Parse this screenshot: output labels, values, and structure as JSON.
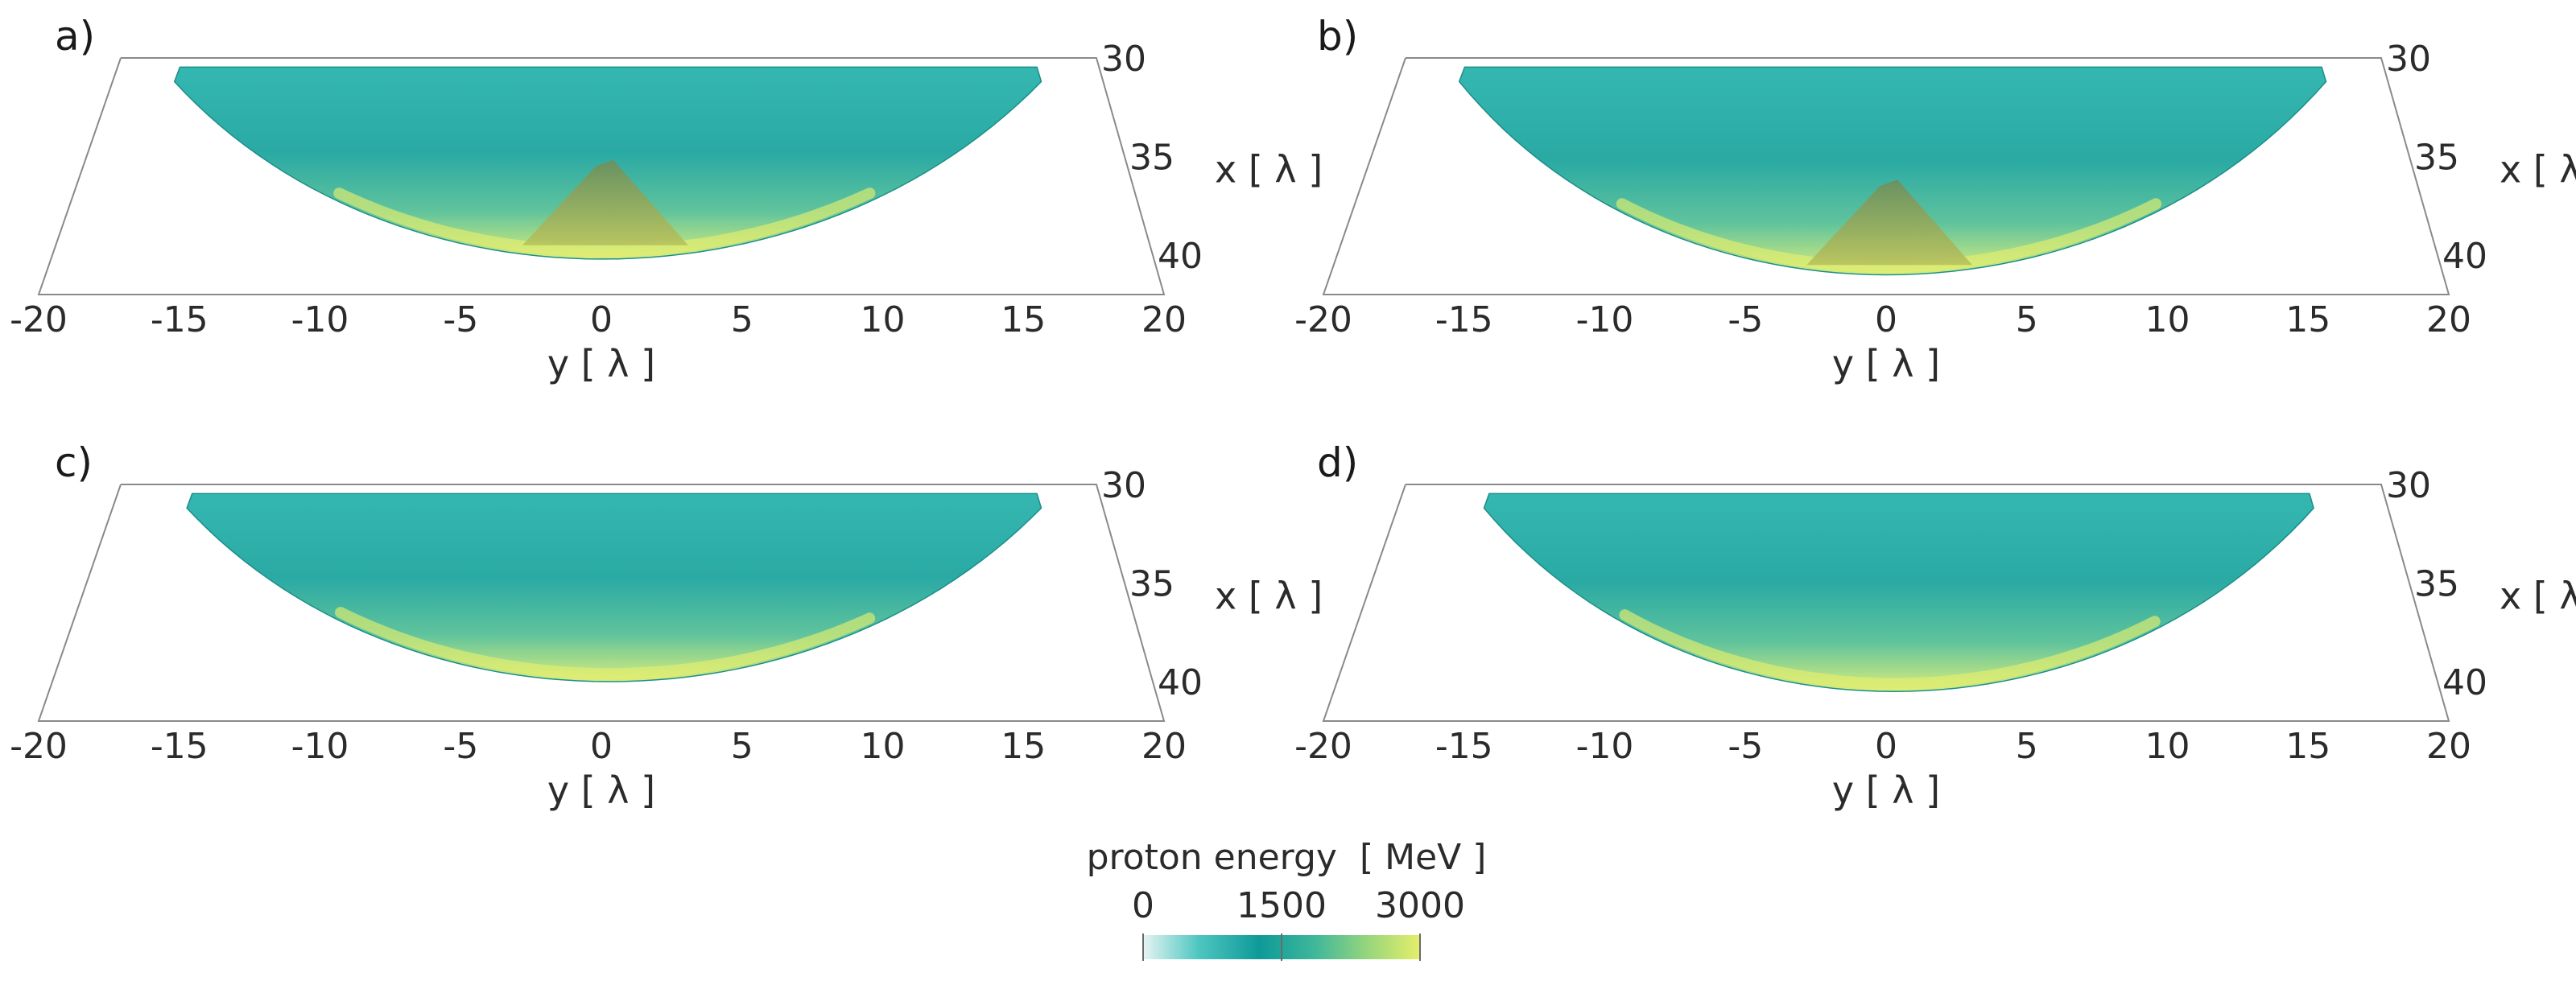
{
  "chart_data": [
    {
      "type": "surface3d",
      "panel": "a)",
      "xlabel": "y [ λ ]",
      "ylabel": "x [ λ ]",
      "x_ticks": [
        "-20",
        "-15",
        "-10",
        "-5",
        "0",
        "5",
        "10",
        "15",
        "20"
      ],
      "y_ticks": [
        "30",
        "35",
        "40"
      ],
      "xlim": [
        -20,
        20
      ],
      "ylim": [
        30,
        42
      ],
      "y_extent": [
        -17.5,
        17.5
      ],
      "depth_center": 40.2,
      "peak": {
        "y": 0,
        "x_range": [
          35.5,
          39.5
        ]
      }
    },
    {
      "type": "surface3d",
      "panel": "b)",
      "xlabel": "y [ λ ]",
      "ylabel": "x [ λ ]",
      "x_ticks": [
        "-20",
        "-15",
        "-10",
        "-5",
        "0",
        "5",
        "10",
        "15",
        "20"
      ],
      "y_ticks": [
        "30",
        "35",
        "40"
      ],
      "xlim": [
        -20,
        20
      ],
      "ylim": [
        30,
        42
      ],
      "y_extent": [
        -17.5,
        17.5
      ],
      "depth_center": 41.0,
      "peak": {
        "y": 0,
        "x_range": [
          36.5,
          40.5
        ]
      }
    },
    {
      "type": "surface3d",
      "panel": "c)",
      "xlabel": "y [ λ ]",
      "ylabel": "x [ λ ]",
      "x_ticks": [
        "-20",
        "-15",
        "-10",
        "-5",
        "0",
        "5",
        "10",
        "15",
        "20"
      ],
      "y_ticks": [
        "30",
        "35",
        "40"
      ],
      "xlim": [
        -20,
        20
      ],
      "ylim": [
        30,
        42
      ],
      "y_extent": [
        -17,
        17.5
      ],
      "depth_center": 40.0,
      "peak": null
    },
    {
      "type": "surface3d",
      "panel": "d)",
      "xlabel": "y [ λ ]",
      "ylabel": "x [ λ ]",
      "x_ticks": [
        "-20",
        "-15",
        "-10",
        "-5",
        "0",
        "5",
        "10",
        "15",
        "20"
      ],
      "y_ticks": [
        "30",
        "35",
        "40"
      ],
      "xlim": [
        -20,
        20
      ],
      "ylim": [
        30,
        42
      ],
      "y_extent": [
        -16.5,
        17
      ],
      "depth_center": 40.5,
      "peak": null
    }
  ],
  "colorbar": {
    "title": "proton energy",
    "unit": "[ MeV ]",
    "ticks": [
      "0",
      "1500",
      "3000"
    ],
    "range": [
      0,
      3000
    ],
    "colors": [
      "#e6f4f4",
      "#4ec6c0",
      "#0e9a99",
      "#3fb79a",
      "#9bd77b",
      "#e6ee6a"
    ]
  }
}
